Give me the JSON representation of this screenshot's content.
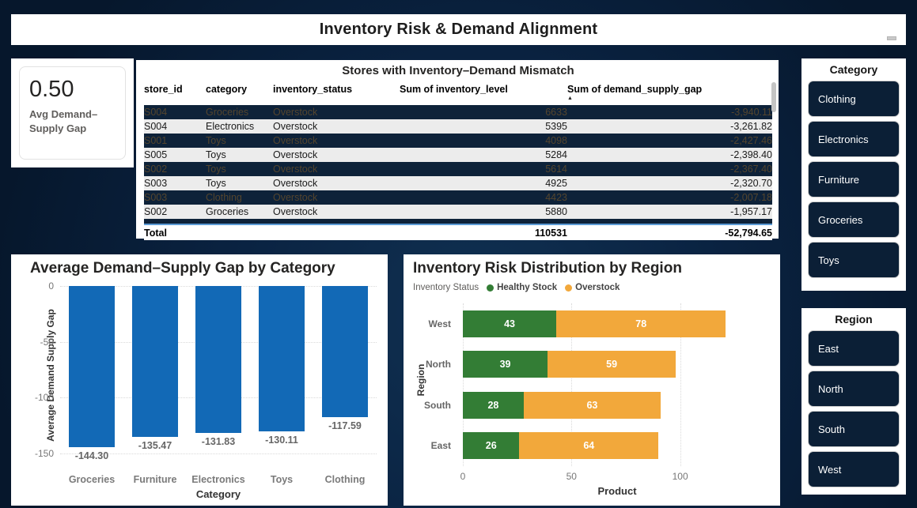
{
  "page": {
    "title": "Inventory Risk & Demand Alignment"
  },
  "kpi": {
    "value": "0.50",
    "label": "Avg Demand–Supply Gap"
  },
  "table": {
    "title": "Stores with Inventory–Demand Mismatch",
    "columns": [
      "store_id",
      "category",
      "inventory_status",
      "Sum of inventory_level",
      "Sum of demand_supply_gap"
    ],
    "sorted_column": "Sum of demand_supply_gap",
    "sort_icon": "▲",
    "rows": [
      {
        "store_id": "S004",
        "category": "Groceries",
        "inventory_status": "Overstock",
        "inventory_level": "6633",
        "demand_supply_gap": "-3,940.11",
        "highlighted": true
      },
      {
        "store_id": "S004",
        "category": "Electronics",
        "inventory_status": "Overstock",
        "inventory_level": "5395",
        "demand_supply_gap": "-3,261.82",
        "highlighted": false
      },
      {
        "store_id": "S001",
        "category": "Toys",
        "inventory_status": "Overstock",
        "inventory_level": "4098",
        "demand_supply_gap": "-2,427.46",
        "highlighted": true
      },
      {
        "store_id": "S005",
        "category": "Toys",
        "inventory_status": "Overstock",
        "inventory_level": "5284",
        "demand_supply_gap": "-2,398.40",
        "highlighted": false
      },
      {
        "store_id": "S002",
        "category": "Toys",
        "inventory_status": "Overstock",
        "inventory_level": "5614",
        "demand_supply_gap": "-2,367.40",
        "highlighted": true
      },
      {
        "store_id": "S003",
        "category": "Toys",
        "inventory_status": "Overstock",
        "inventory_level": "4925",
        "demand_supply_gap": "-2,320.70",
        "highlighted": false
      },
      {
        "store_id": "S003",
        "category": "Clothing",
        "inventory_status": "Overstock",
        "inventory_level": "4423",
        "demand_supply_gap": "-2,007.18",
        "highlighted": true
      },
      {
        "store_id": "S002",
        "category": "Groceries",
        "inventory_status": "Overstock",
        "inventory_level": "5880",
        "demand_supply_gap": "-1,957.17",
        "highlighted": false
      }
    ],
    "total": {
      "label": "Total",
      "inventory_level": "110531",
      "demand_supply_gap": "-52,794.65"
    }
  },
  "chart_data": [
    {
      "type": "bar",
      "title": "Average Demand–Supply Gap by Category",
      "categories": [
        "Groceries",
        "Furniture",
        "Electronics",
        "Toys",
        "Clothing"
      ],
      "values": [
        -144.3,
        -135.47,
        -131.83,
        -130.11,
        -117.59
      ],
      "data_labels": [
        "-144.30",
        "-135.47",
        "-131.83",
        "-130.11",
        "-117.59"
      ],
      "xlabel": "Category",
      "ylabel": "Average Demand Supply Gap",
      "ylim": [
        -150,
        0
      ],
      "yticks": [
        0,
        -50,
        -100,
        -150
      ],
      "grid": "horizontal-dotted",
      "bar_color": "#1269b6"
    },
    {
      "type": "stacked-bar-horizontal",
      "title": "Inventory Risk Distribution by Region",
      "legend_title": "Inventory Status",
      "legend_position": "top",
      "categories": [
        "West",
        "North",
        "South",
        "East"
      ],
      "series": [
        {
          "name": "Healthy Stock",
          "color": "#337d35",
          "values": [
            43,
            39,
            28,
            26
          ]
        },
        {
          "name": "Overstock",
          "color": "#f2a83b",
          "values": [
            78,
            59,
            63,
            64
          ]
        }
      ],
      "xlabel": "Product",
      "ylabel": "Region",
      "xlim": [
        0,
        142
      ],
      "xticks": [
        0,
        50,
        100
      ],
      "grid": "vertical-dotted"
    }
  ],
  "slicers": [
    {
      "title": "Category",
      "items": [
        "Clothing",
        "Electronics",
        "Furniture",
        "Groceries",
        "Toys"
      ]
    },
    {
      "title": "Region",
      "items": [
        "East",
        "North",
        "South",
        "West"
      ]
    }
  ],
  "colors": {
    "background_navy": "#0a2342",
    "row_highlight_navy": "#0e2239",
    "row_highlight_text": "#54452e",
    "slicer_button_navy": "#0b1f36",
    "bar_blue": "#1269b6",
    "healthy_green": "#337d35",
    "overstock_orange": "#f2a83b",
    "total_separator_blue": "#5b9bd5"
  }
}
